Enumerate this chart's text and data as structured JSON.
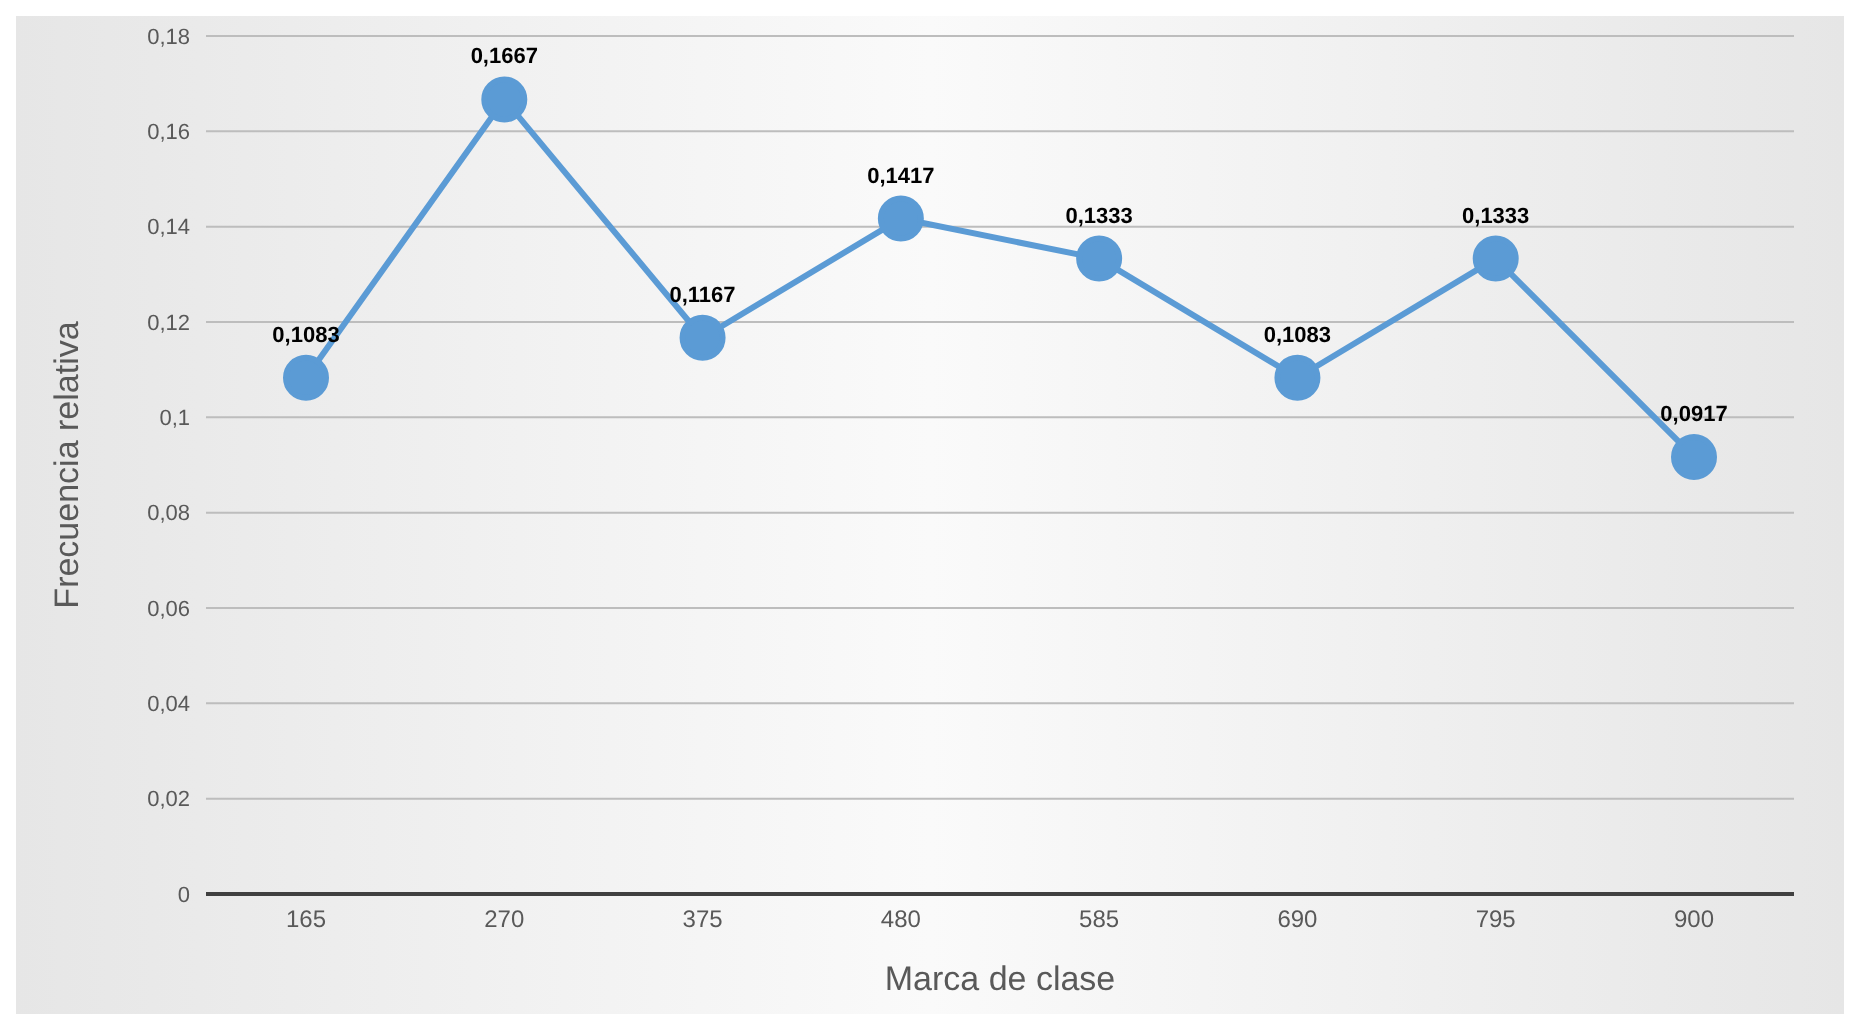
{
  "chart_data": {
    "type": "line",
    "xlabel": "Marca de clase",
    "ylabel": "Frecuencia relativa",
    "categories": [
      "165",
      "270",
      "375",
      "480",
      "585",
      "690",
      "795",
      "900"
    ],
    "series": [
      {
        "color": "#5b9bd5",
        "values": [
          0.1083,
          0.1667,
          0.1167,
          0.1417,
          0.1333,
          0.1083,
          0.1333,
          0.0917
        ],
        "value_labels": [
          "0,1083",
          "0,1667",
          "0,1167",
          "0,1417",
          "0,1333",
          "0,1083",
          "0,1333",
          "0,0917"
        ]
      }
    ],
    "ylim": [
      0,
      0.18
    ],
    "yticks": [
      0,
      {
        "value": 0.02,
        "label": "0,02"
      },
      {
        "value": 0.04,
        "label": "0,04"
      },
      {
        "value": 0.06,
        "label": "0,06"
      },
      {
        "value": 0.08,
        "label": "0,08"
      },
      {
        "value": 0.1,
        "label": "0,1"
      },
      {
        "value": 0.12,
        "label": "0,12"
      },
      {
        "value": 0.14,
        "label": "0,14"
      },
      {
        "value": 0.16,
        "label": "0,16"
      },
      {
        "value": 0.18,
        "label": "0,18"
      }
    ],
    "grid": "y",
    "marker": "circle",
    "line_style": "solid"
  }
}
